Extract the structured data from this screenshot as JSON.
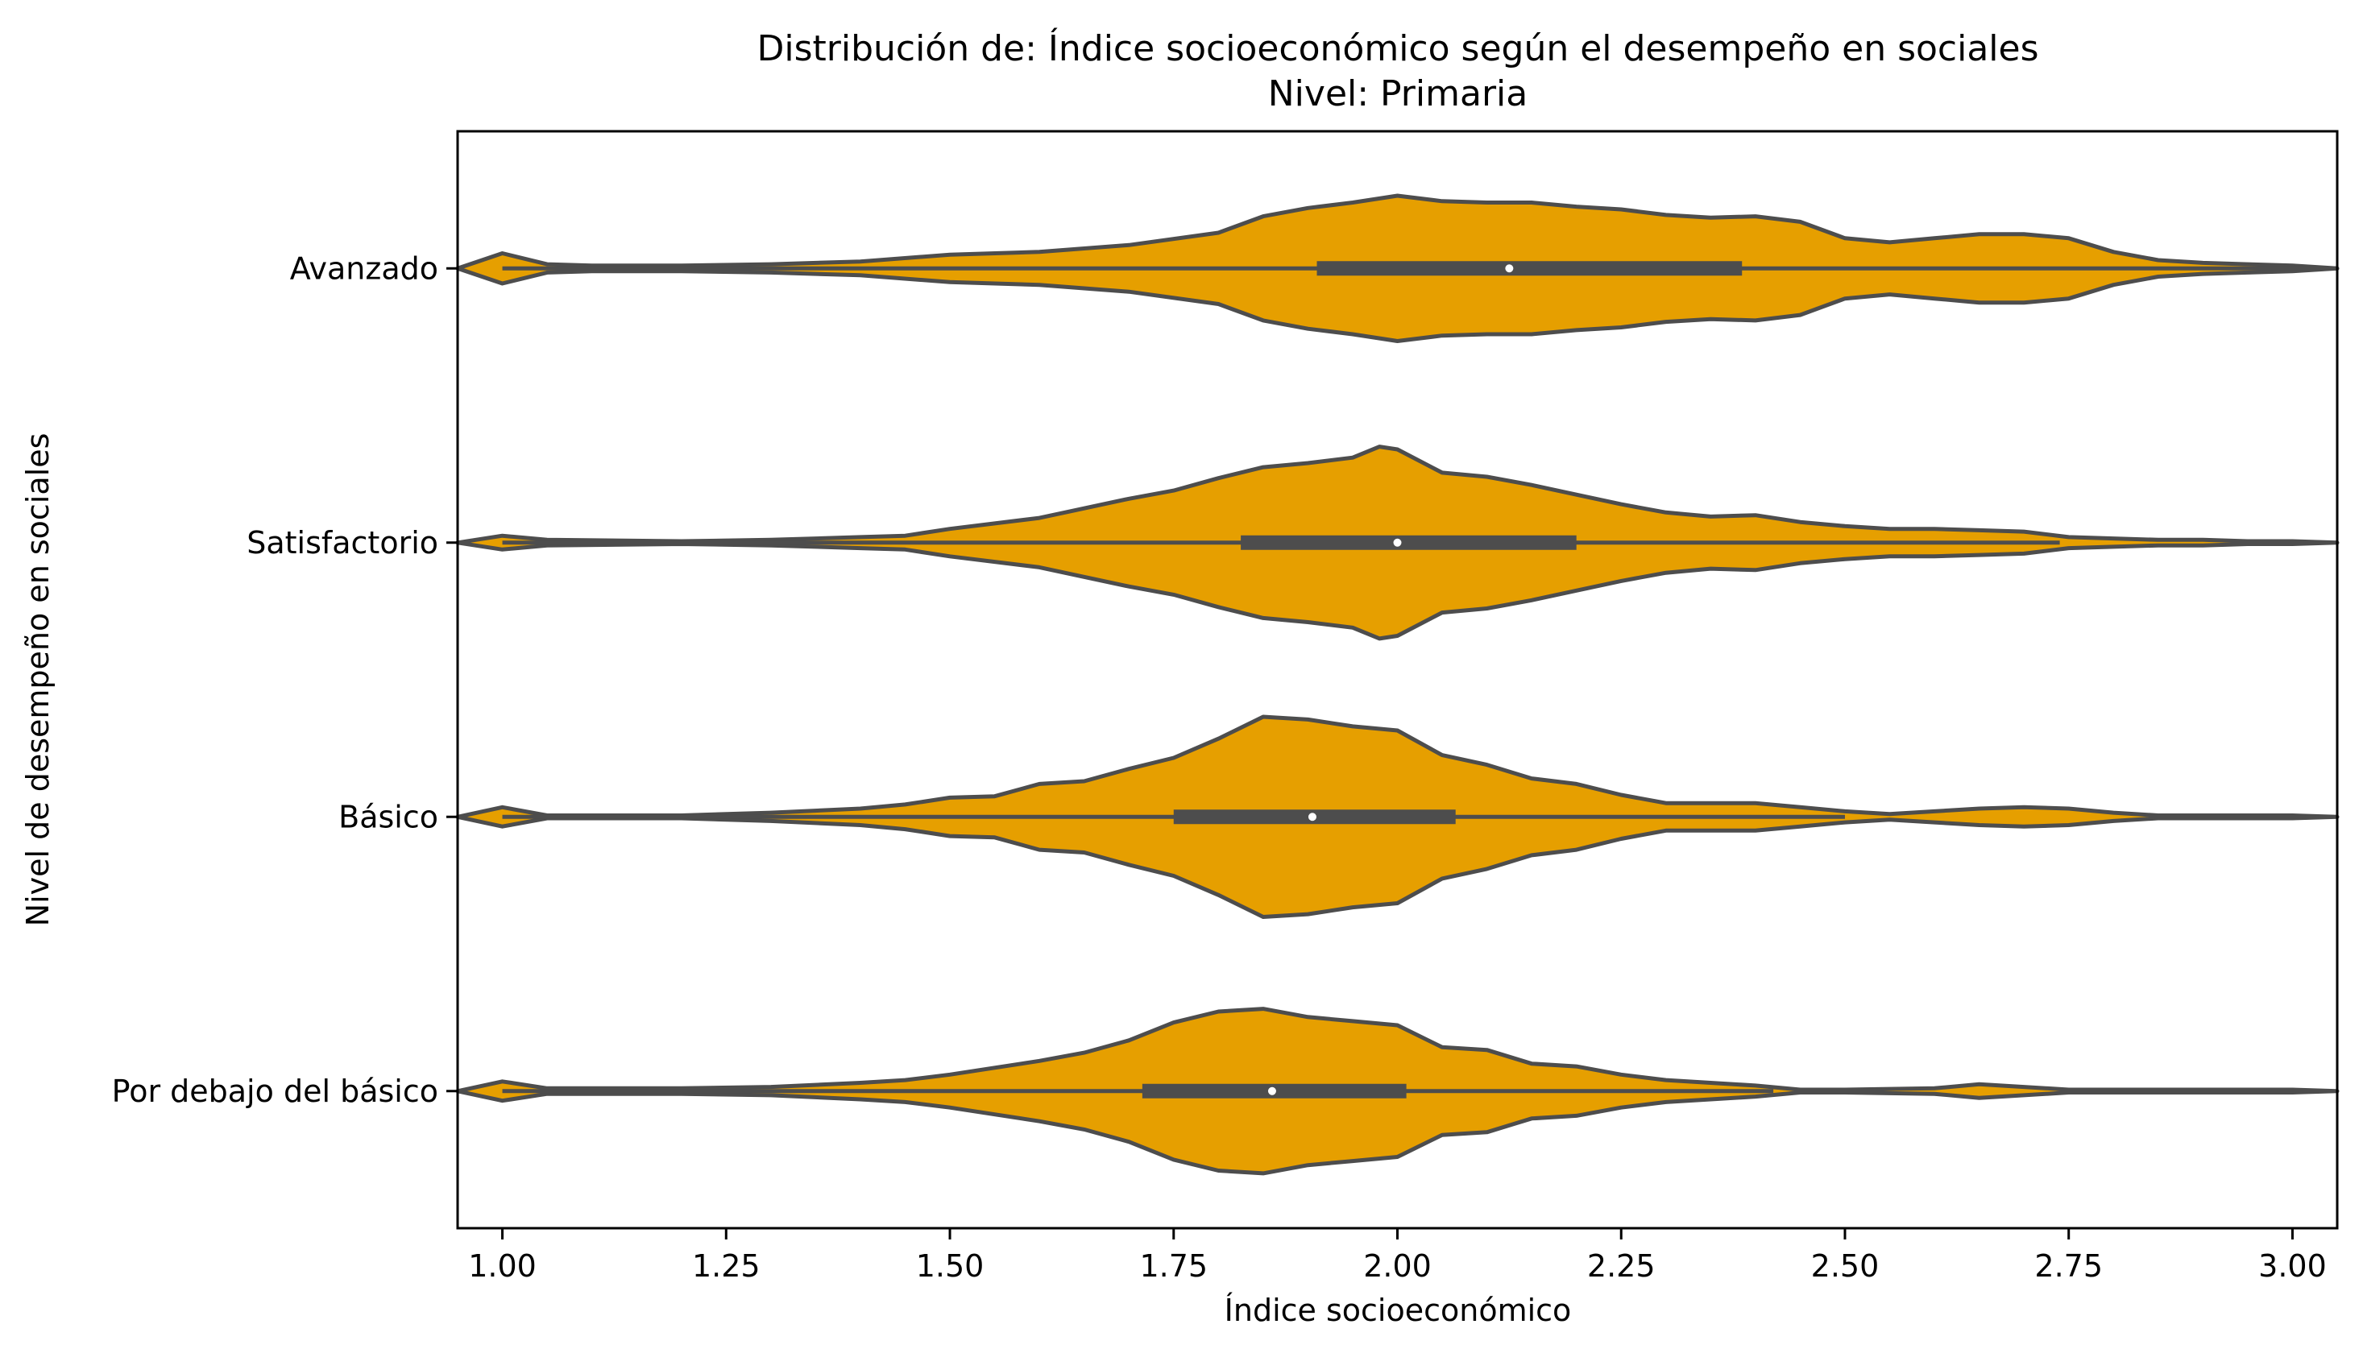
{
  "chart_data": {
    "type": "violin",
    "orientation": "horizontal",
    "title": "Distribución de: Índice socioeconómico según el desempeño en sociales",
    "subtitle": "Nivel: Primaria",
    "xlabel": "Índice socioeconómico",
    "ylabel": "Nivel de desempeño en sociales",
    "xlim": [
      0.95,
      3.05
    ],
    "xticks": [
      1.0,
      1.25,
      1.5,
      1.75,
      2.0,
      2.25,
      2.5,
      2.75,
      3.0
    ],
    "xtick_labels": [
      "1.00",
      "1.25",
      "1.50",
      "1.75",
      "2.00",
      "2.25",
      "2.50",
      "2.75",
      "3.00"
    ],
    "grid": false,
    "legend": "none",
    "colors": {
      "fill": "#e69f00",
      "edge": "#4d4d4d",
      "median": "#ffffff"
    },
    "categories": [
      "Avanzado",
      "Satisfactorio",
      "Básico",
      "Por debajo del básico"
    ],
    "violins": [
      {
        "category": "Avanzado",
        "q1": 1.91,
        "median": 2.125,
        "q3": 2.385,
        "whisker_low": 1.0,
        "whisker_high": 3.05,
        "density": [
          [
            0.95,
            0.0
          ],
          [
            1.0,
            0.11
          ],
          [
            1.05,
            0.03
          ],
          [
            1.1,
            0.02
          ],
          [
            1.2,
            0.02
          ],
          [
            1.3,
            0.03
          ],
          [
            1.4,
            0.05
          ],
          [
            1.5,
            0.1
          ],
          [
            1.6,
            0.12
          ],
          [
            1.7,
            0.17
          ],
          [
            1.8,
            0.26
          ],
          [
            1.85,
            0.38
          ],
          [
            1.9,
            0.44
          ],
          [
            1.95,
            0.48
          ],
          [
            2.0,
            0.53
          ],
          [
            2.05,
            0.49
          ],
          [
            2.1,
            0.48
          ],
          [
            2.15,
            0.48
          ],
          [
            2.2,
            0.45
          ],
          [
            2.25,
            0.43
          ],
          [
            2.3,
            0.39
          ],
          [
            2.35,
            0.37
          ],
          [
            2.4,
            0.38
          ],
          [
            2.45,
            0.34
          ],
          [
            2.5,
            0.22
          ],
          [
            2.55,
            0.19
          ],
          [
            2.6,
            0.22
          ],
          [
            2.65,
            0.25
          ],
          [
            2.7,
            0.25
          ],
          [
            2.75,
            0.22
          ],
          [
            2.8,
            0.12
          ],
          [
            2.85,
            0.06
          ],
          [
            2.9,
            0.04
          ],
          [
            2.95,
            0.03
          ],
          [
            3.0,
            0.02
          ],
          [
            3.05,
            0.0
          ]
        ]
      },
      {
        "category": "Satisfactorio",
        "q1": 1.825,
        "median": 2.0,
        "q3": 2.2,
        "whisker_low": 1.0,
        "whisker_high": 2.74,
        "density": [
          [
            0.95,
            0.0
          ],
          [
            1.0,
            0.05
          ],
          [
            1.05,
            0.02
          ],
          [
            1.2,
            0.01
          ],
          [
            1.3,
            0.02
          ],
          [
            1.4,
            0.04
          ],
          [
            1.45,
            0.05
          ],
          [
            1.5,
            0.1
          ],
          [
            1.6,
            0.18
          ],
          [
            1.7,
            0.32
          ],
          [
            1.75,
            0.38
          ],
          [
            1.8,
            0.47
          ],
          [
            1.85,
            0.55
          ],
          [
            1.9,
            0.58
          ],
          [
            1.95,
            0.62
          ],
          [
            1.98,
            0.7
          ],
          [
            2.0,
            0.68
          ],
          [
            2.05,
            0.51
          ],
          [
            2.1,
            0.48
          ],
          [
            2.15,
            0.42
          ],
          [
            2.2,
            0.35
          ],
          [
            2.25,
            0.28
          ],
          [
            2.3,
            0.22
          ],
          [
            2.35,
            0.19
          ],
          [
            2.4,
            0.2
          ],
          [
            2.45,
            0.15
          ],
          [
            2.5,
            0.12
          ],
          [
            2.55,
            0.1
          ],
          [
            2.6,
            0.1
          ],
          [
            2.65,
            0.09
          ],
          [
            2.7,
            0.08
          ],
          [
            2.75,
            0.04
          ],
          [
            2.8,
            0.03
          ],
          [
            2.85,
            0.02
          ],
          [
            2.9,
            0.02
          ],
          [
            2.95,
            0.01
          ],
          [
            3.0,
            0.01
          ],
          [
            3.05,
            0.0
          ]
        ]
      },
      {
        "category": "Básico",
        "q1": 1.75,
        "median": 1.905,
        "q3": 2.065,
        "whisker_low": 1.0,
        "whisker_high": 2.5,
        "density": [
          [
            0.95,
            0.0
          ],
          [
            1.0,
            0.07
          ],
          [
            1.05,
            0.01
          ],
          [
            1.2,
            0.01
          ],
          [
            1.3,
            0.03
          ],
          [
            1.4,
            0.06
          ],
          [
            1.45,
            0.09
          ],
          [
            1.5,
            0.14
          ],
          [
            1.55,
            0.15
          ],
          [
            1.6,
            0.24
          ],
          [
            1.65,
            0.26
          ],
          [
            1.7,
            0.35
          ],
          [
            1.75,
            0.43
          ],
          [
            1.8,
            0.57
          ],
          [
            1.85,
            0.73
          ],
          [
            1.9,
            0.71
          ],
          [
            1.95,
            0.66
          ],
          [
            2.0,
            0.63
          ],
          [
            2.05,
            0.45
          ],
          [
            2.1,
            0.38
          ],
          [
            2.15,
            0.28
          ],
          [
            2.2,
            0.24
          ],
          [
            2.25,
            0.16
          ],
          [
            2.3,
            0.1
          ],
          [
            2.35,
            0.1
          ],
          [
            2.4,
            0.1
          ],
          [
            2.45,
            0.07
          ],
          [
            2.5,
            0.04
          ],
          [
            2.55,
            0.02
          ],
          [
            2.6,
            0.04
          ],
          [
            2.65,
            0.06
          ],
          [
            2.7,
            0.07
          ],
          [
            2.75,
            0.06
          ],
          [
            2.8,
            0.03
          ],
          [
            2.85,
            0.01
          ],
          [
            3.0,
            0.01
          ],
          [
            3.05,
            0.0
          ]
        ]
      },
      {
        "category": "Por debajo del básico",
        "q1": 1.715,
        "median": 1.86,
        "q3": 2.01,
        "whisker_low": 1.0,
        "whisker_high": 2.42,
        "density": [
          [
            0.95,
            0.0
          ],
          [
            1.0,
            0.07
          ],
          [
            1.05,
            0.02
          ],
          [
            1.2,
            0.02
          ],
          [
            1.3,
            0.03
          ],
          [
            1.4,
            0.06
          ],
          [
            1.45,
            0.08
          ],
          [
            1.5,
            0.12
          ],
          [
            1.55,
            0.17
          ],
          [
            1.6,
            0.22
          ],
          [
            1.65,
            0.28
          ],
          [
            1.7,
            0.37
          ],
          [
            1.75,
            0.5
          ],
          [
            1.8,
            0.58
          ],
          [
            1.85,
            0.6
          ],
          [
            1.9,
            0.54
          ],
          [
            1.95,
            0.51
          ],
          [
            2.0,
            0.48
          ],
          [
            2.05,
            0.32
          ],
          [
            2.1,
            0.3
          ],
          [
            2.15,
            0.2
          ],
          [
            2.2,
            0.18
          ],
          [
            2.25,
            0.12
          ],
          [
            2.3,
            0.08
          ],
          [
            2.35,
            0.06
          ],
          [
            2.4,
            0.04
          ],
          [
            2.45,
            0.01
          ],
          [
            2.5,
            0.01
          ],
          [
            2.6,
            0.02
          ],
          [
            2.65,
            0.05
          ],
          [
            2.7,
            0.03
          ],
          [
            2.75,
            0.01
          ],
          [
            2.8,
            0.01
          ],
          [
            3.0,
            0.01
          ],
          [
            3.05,
            0.0
          ]
        ]
      }
    ]
  }
}
